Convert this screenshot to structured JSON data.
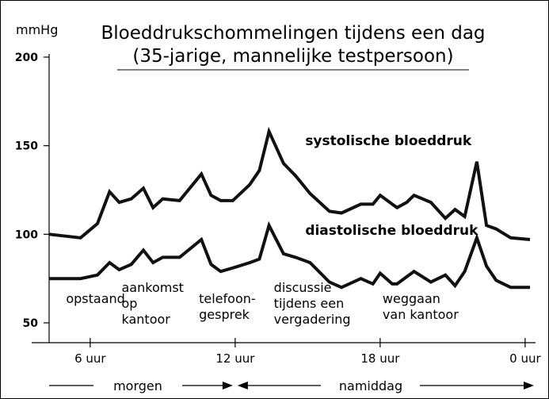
{
  "chart_data": {
    "type": "line",
    "title": "Bloeddrukschommelingen tijdens een dag",
    "subtitle": "(35-jarige, mannelijke testpersoon)",
    "ylabel": "mmHg",
    "ylim": [
      40,
      200
    ],
    "yticks": [
      50,
      100,
      150,
      200
    ],
    "xlim": [
      4.3,
      24.2
    ],
    "xticks": [
      {
        "x": 6,
        "label": "6 uur"
      },
      {
        "x": 12,
        "label": "12 uur"
      },
      {
        "x": 18,
        "label": "18 uur"
      },
      {
        "x": 24,
        "label": "0 uur"
      }
    ],
    "series": [
      {
        "name": "systolische bloeddruk",
        "x": [
          4.3,
          5.6,
          6.3,
          6.8,
          7.2,
          7.7,
          8.2,
          8.6,
          9.0,
          9.7,
          10.6,
          11.0,
          11.4,
          11.9,
          12.6,
          13.0,
          13.4,
          14.0,
          14.5,
          15.1,
          15.9,
          16.4,
          17.2,
          17.7,
          18.0,
          18.5,
          18.7,
          19.1,
          19.4,
          20.1,
          20.7,
          21.1,
          21.5,
          22.0,
          22.4,
          22.8,
          23.4,
          24.2
        ],
        "values": [
          100,
          98,
          106,
          124,
          118,
          120,
          126,
          115,
          120,
          119,
          134,
          122,
          119,
          119,
          128,
          136,
          158,
          140,
          133,
          123,
          113,
          112,
          117,
          117,
          122,
          117,
          115,
          118,
          122,
          118,
          109,
          114,
          110,
          141,
          105,
          103,
          98,
          97
        ]
      },
      {
        "name": "diastolische bloeddruk",
        "x": [
          4.3,
          5.6,
          6.3,
          6.8,
          7.2,
          7.7,
          8.2,
          8.6,
          9.0,
          9.7,
          10.6,
          11.0,
          11.4,
          11.9,
          12.6,
          13.0,
          13.4,
          14.0,
          14.5,
          15.1,
          15.9,
          16.4,
          17.2,
          17.7,
          18.0,
          18.5,
          18.7,
          19.1,
          19.4,
          20.1,
          20.7,
          21.1,
          21.5,
          22.0,
          22.4,
          22.8,
          23.4,
          24.2
        ],
        "values": [
          75,
          75,
          77,
          84,
          80,
          83,
          91,
          84,
          87,
          87,
          97,
          83,
          79,
          81,
          84,
          86,
          105,
          89,
          87,
          84,
          73,
          70,
          75,
          72,
          78,
          72,
          72,
          76,
          79,
          73,
          77,
          71,
          79,
          98,
          82,
          74,
          70,
          70
        ]
      }
    ],
    "annotations": [
      {
        "x": 5.0,
        "lines": [
          "opstaand"
        ]
      },
      {
        "x": 7.3,
        "lines": [
          "aankomst",
          "op",
          "kantoor"
        ]
      },
      {
        "x": 10.5,
        "lines": [
          "telefoon-",
          "gesprek"
        ]
      },
      {
        "x": 13.6,
        "lines": [
          "discussie",
          "tijdens een",
          "vergadering"
        ]
      },
      {
        "x": 18.1,
        "lines": [
          "weggaan",
          "van kantoor"
        ]
      }
    ],
    "periods": [
      {
        "label": "morgen",
        "from": 4.3,
        "to": 12.0
      },
      {
        "label": "namiddag",
        "from": 12.0,
        "to": 24.2
      }
    ],
    "grid": false,
    "legend": "inline labels near lines"
  }
}
